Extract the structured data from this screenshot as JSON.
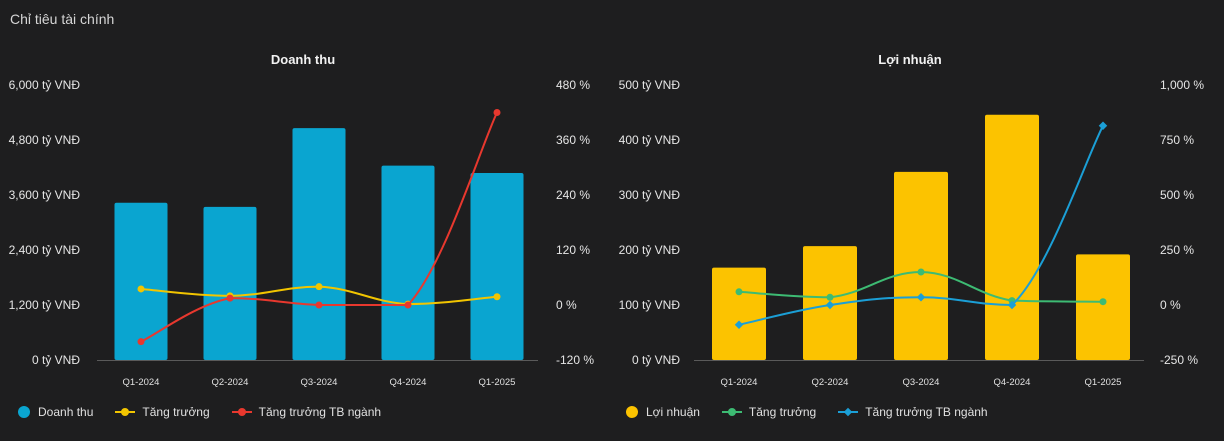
{
  "page": {
    "title": "Chỉ tiêu tài chính"
  },
  "chart_data": [
    {
      "type": "bar",
      "title": "Doanh thu",
      "categories": [
        "Q1-2024",
        "Q2-2024",
        "Q3-2024",
        "Q4-2024",
        "Q1-2025"
      ],
      "left_axis": {
        "ticks": [
          "0 tỷ VNĐ",
          "1,200 tỷ VNĐ",
          "2,400 tỷ VNĐ",
          "3,600 tỷ VNĐ",
          "4,800 tỷ VNĐ",
          "6,000 tỷ VNĐ"
        ],
        "ylim": [
          0,
          6000
        ]
      },
      "right_axis": {
        "ticks": [
          "-120 %",
          "0 %",
          "120 %",
          "240 %",
          "360 %",
          "480 %"
        ],
        "ylim": [
          -120,
          480
        ]
      },
      "series": [
        {
          "name": "Doanh thu",
          "kind": "bar",
          "axis": "left",
          "color": "#0aa5d0",
          "values": [
            3430,
            3340,
            5060,
            4240,
            4080
          ]
        },
        {
          "name": "Tăng trưởng",
          "kind": "line",
          "axis": "right",
          "color": "#f2c500",
          "marker": "circle",
          "values": [
            35,
            20,
            40,
            2,
            18
          ]
        },
        {
          "name": "Tăng trưởng TB ngành",
          "kind": "line",
          "axis": "right",
          "color": "#e8382e",
          "marker": "circle",
          "values": [
            -80,
            15,
            0,
            0,
            420
          ]
        }
      ],
      "legend": "bottom-left",
      "grid": false
    },
    {
      "type": "bar",
      "title": "Lợi nhuận",
      "categories": [
        "Q1-2024",
        "Q2-2024",
        "Q3-2024",
        "Q4-2024",
        "Q1-2025"
      ],
      "left_axis": {
        "ticks": [
          "0 tỷ VNĐ",
          "100 tỷ VNĐ",
          "200 tỷ VNĐ",
          "300 tỷ VNĐ",
          "400 tỷ VNĐ",
          "500 tỷ VNĐ"
        ],
        "ylim": [
          0,
          500
        ]
      },
      "right_axis": {
        "ticks": [
          "-250 %",
          "0 %",
          "250 %",
          "500 %",
          "750 %",
          "1,000 %"
        ],
        "ylim": [
          -250,
          1000
        ]
      },
      "series": [
        {
          "name": "Lợi nhuận",
          "kind": "bar",
          "axis": "left",
          "color": "#fcc300",
          "values": [
            168,
            207,
            342,
            446,
            192
          ]
        },
        {
          "name": "Tăng trưởng",
          "kind": "line",
          "axis": "right",
          "color": "#3dbb73",
          "marker": "circle",
          "values": [
            60,
            35,
            150,
            20,
            15
          ]
        },
        {
          "name": "Tăng trưởng TB ngành",
          "kind": "line",
          "axis": "right",
          "color": "#1b9fd6",
          "marker": "diamond",
          "values": [
            -90,
            0,
            35,
            0,
            815
          ]
        }
      ],
      "legend": "bottom-left",
      "grid": false
    }
  ]
}
